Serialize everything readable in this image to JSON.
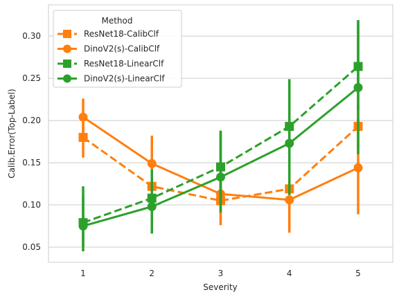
{
  "chart_data": {
    "type": "line",
    "xlabel": "Severity",
    "ylabel": "Calib.Error(Top-Label)",
    "categories": [
      "1",
      "2",
      "3",
      "4",
      "5"
    ],
    "ylim": [
      0.032,
      0.337
    ],
    "yticks": [
      "0.05",
      "0.10",
      "0.15",
      "0.20",
      "0.25",
      "0.30"
    ],
    "grid": true,
    "legend": {
      "title": "Method",
      "placement": "top-left"
    },
    "series": [
      {
        "name": "ResNet18-CalibClf",
        "color": "#ff7f0e",
        "dash": true,
        "marker": "square",
        "values": [
          0.18,
          0.122,
          0.105,
          0.119,
          0.193
        ],
        "err_low": [
          0.156,
          0.096,
          0.076,
          0.094,
          0.166
        ],
        "err_high": [
          0.204,
          0.146,
          0.132,
          0.144,
          0.22
        ]
      },
      {
        "name": "DinoV2(s)-CalibClf",
        "color": "#ff7f0e",
        "dash": false,
        "marker": "circle",
        "values": [
          0.204,
          0.149,
          0.113,
          0.106,
          0.144
        ],
        "err_low": [
          0.181,
          0.115,
          0.089,
          0.067,
          0.089
        ],
        "err_high": [
          0.226,
          0.182,
          0.137,
          0.146,
          0.202
        ]
      },
      {
        "name": "ResNet18-LinearClf",
        "color": "#2ca02c",
        "dash": true,
        "marker": "square",
        "values": [
          0.079,
          0.108,
          0.145,
          0.193,
          0.264
        ],
        "err_low": [
          0.05,
          0.074,
          0.104,
          0.14,
          0.212
        ],
        "err_high": [
          0.111,
          0.142,
          0.187,
          0.249,
          0.319
        ]
      },
      {
        "name": "DinoV2(s)-LinearClf",
        "color": "#2ca02c",
        "dash": false,
        "marker": "circle",
        "values": [
          0.075,
          0.098,
          0.133,
          0.173,
          0.239
        ],
        "err_low": [
          0.045,
          0.066,
          0.091,
          0.112,
          0.16
        ],
        "err_high": [
          0.122,
          0.131,
          0.188,
          0.24,
          0.317
        ]
      }
    ]
  }
}
